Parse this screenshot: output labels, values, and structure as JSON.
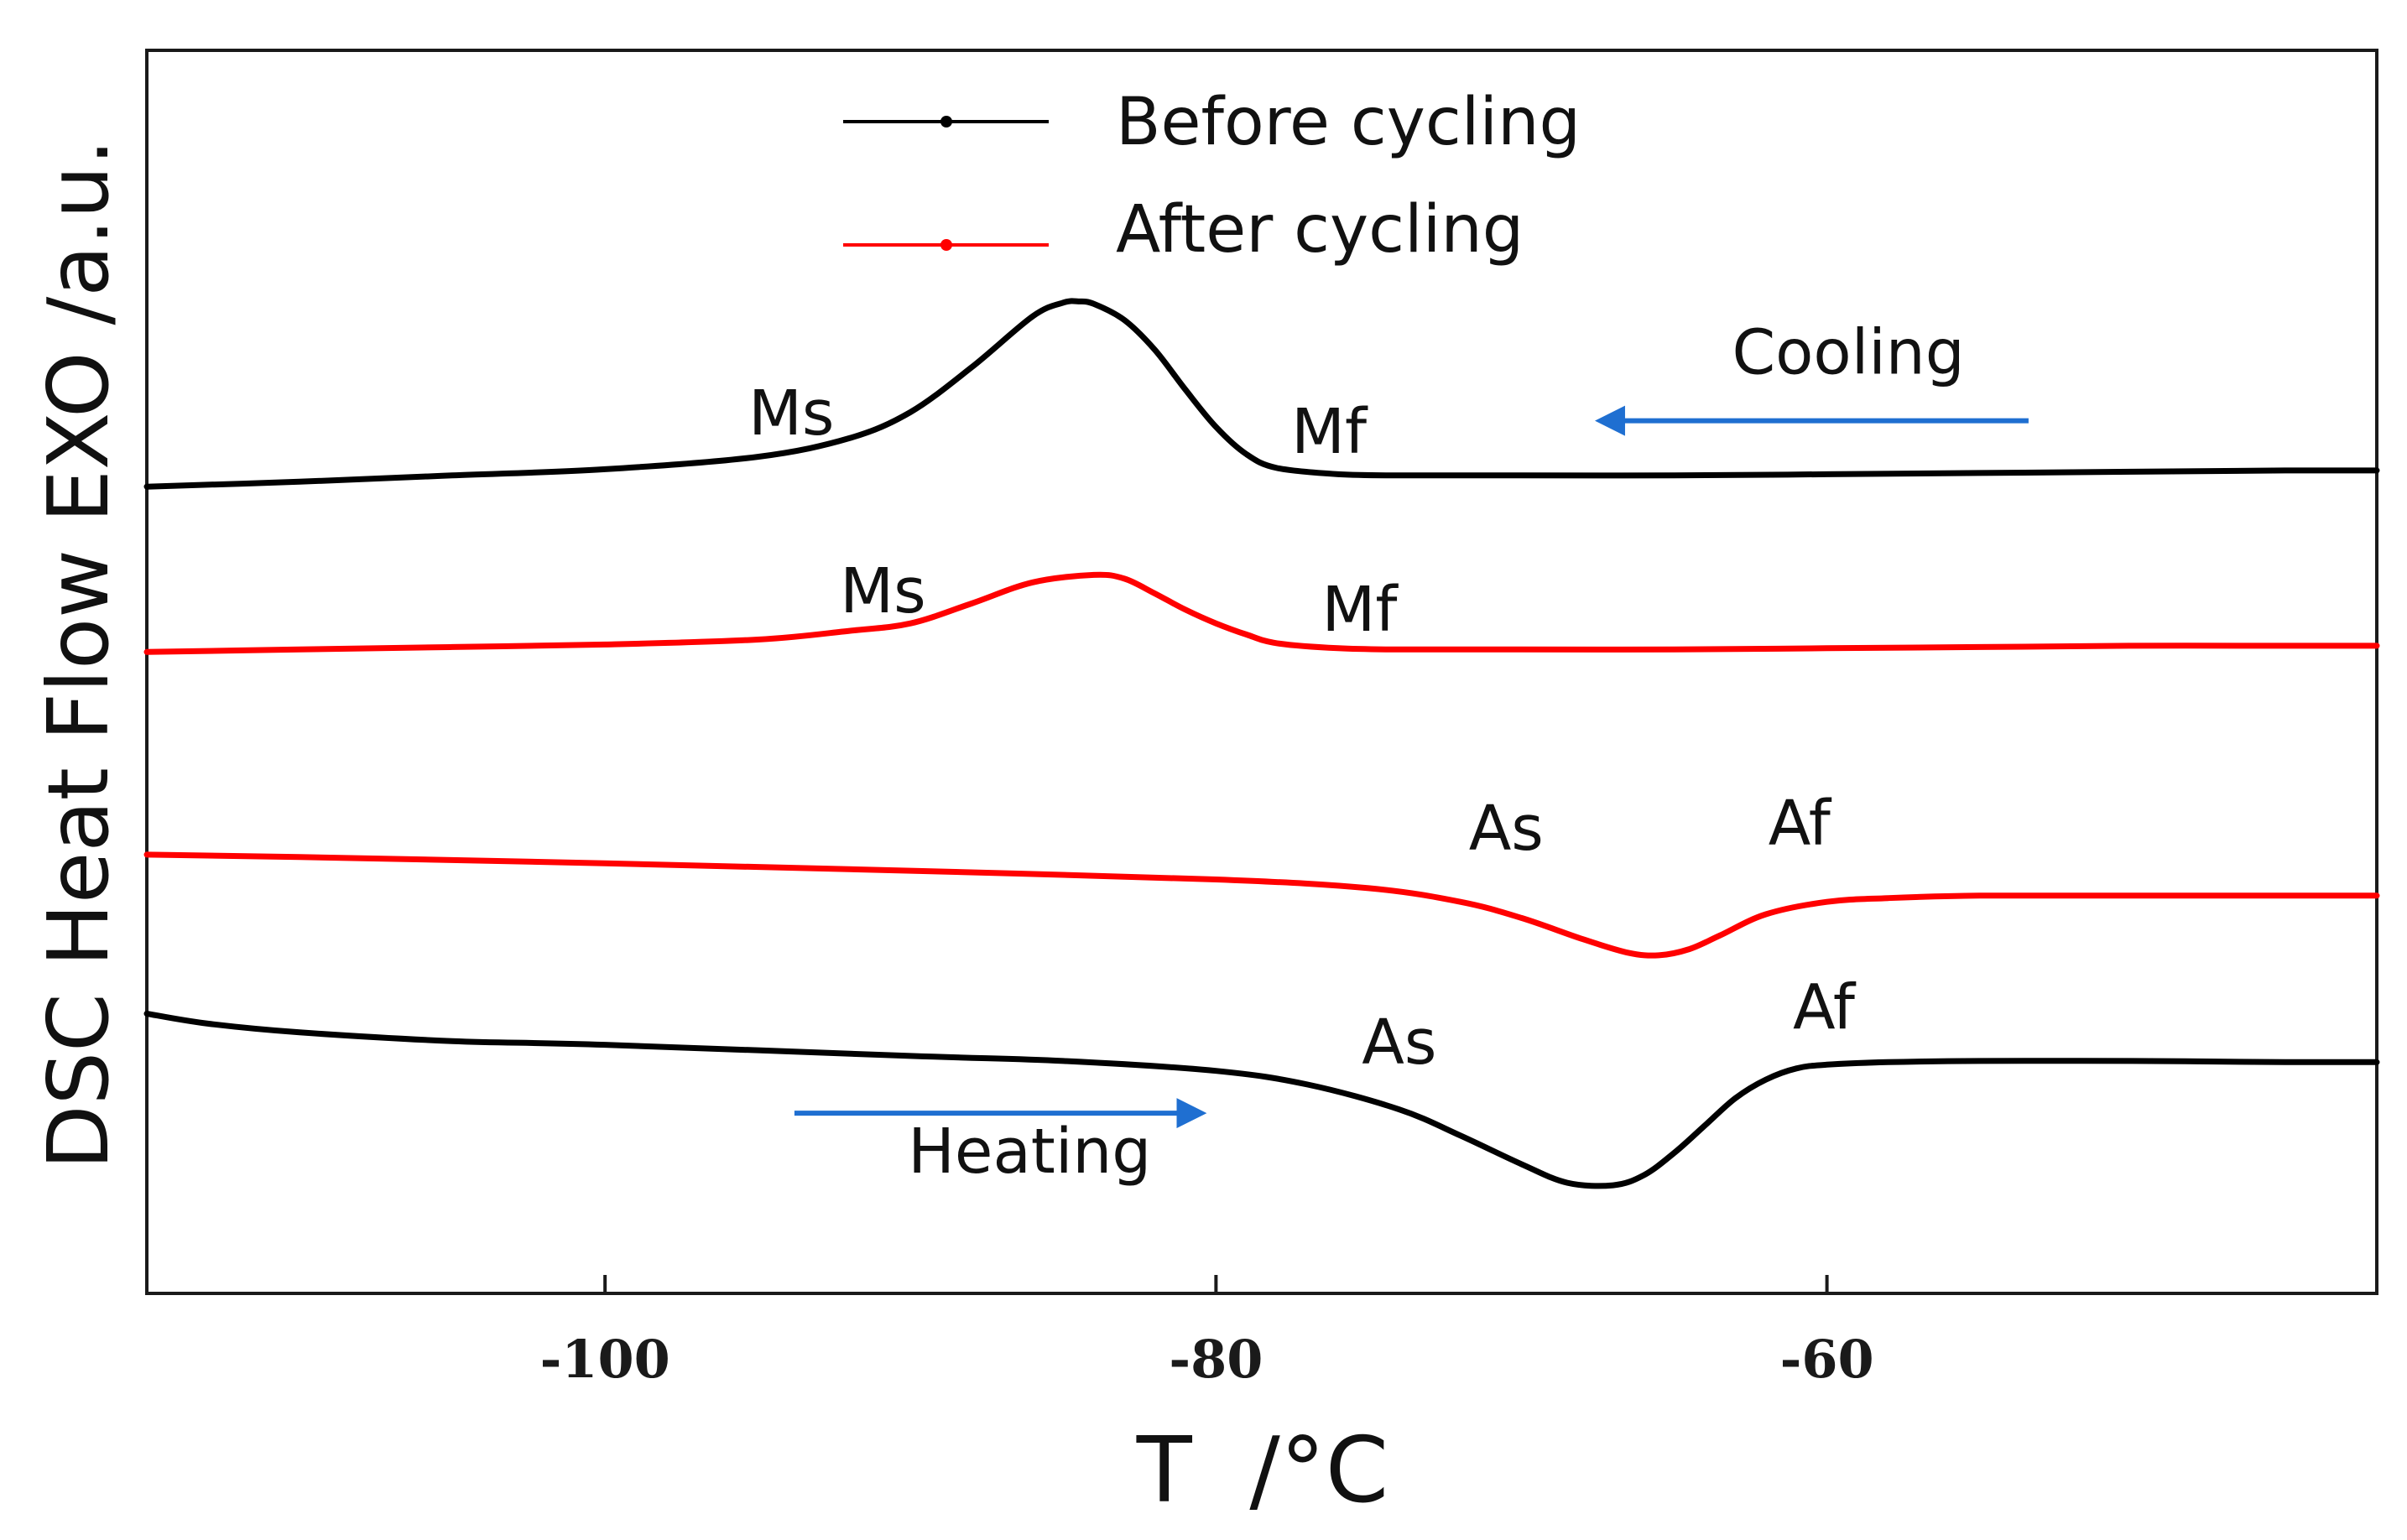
{
  "chart_data": {
    "type": "line",
    "title": "",
    "xlabel": "T  /°C",
    "ylabel": "DSC Heat Flow EXO /a.u.",
    "xlim": [
      -115.0,
      -42.0
    ],
    "ylim": [
      0,
      100
    ],
    "xticks": [
      -100,
      -80,
      -60
    ],
    "xtick_labels": [
      "-100",
      "-80",
      "-60"
    ],
    "grid": false,
    "legend": {
      "placement": "top-center",
      "entries": [
        {
          "name": "Before cycling",
          "color": "#000000"
        },
        {
          "name": "After cycling",
          "color": "#ff0000"
        }
      ]
    },
    "series": [
      {
        "name": "Before cycling - cooling",
        "legend_ref": "Before cycling",
        "color": "#000000",
        "x": [
          -115,
          -110,
          -105,
          -100,
          -95,
          -92,
          -90,
          -88,
          -86,
          -85,
          -84.5,
          -84,
          -83,
          -82,
          -81,
          -80,
          -79,
          -78,
          -76,
          -74,
          -70,
          -65,
          -60,
          -55,
          -50,
          -45,
          -42
        ],
        "y": [
          64.9,
          65.3,
          65.8,
          66.3,
          67.3,
          68.8,
          70.9,
          74.5,
          78.6,
          79.7,
          79.8,
          79.6,
          78.3,
          75.9,
          72.7,
          69.7,
          67.5,
          66.4,
          65.9,
          65.8,
          65.8,
          65.8,
          65.9,
          66.0,
          66.1,
          66.2,
          66.2
        ]
      },
      {
        "name": "After cycling - cooling",
        "legend_ref": "After cycling",
        "color": "#ff0000",
        "x": [
          -115,
          -110,
          -105,
          -100,
          -95,
          -92,
          -90,
          -88,
          -86,
          -84,
          -83,
          -82,
          -81,
          -80,
          -79,
          -78,
          -76,
          -74,
          -70,
          -65,
          -60,
          -55,
          -50,
          -45,
          -42
        ],
        "y": [
          51.6,
          51.8,
          52.0,
          52.2,
          52.6,
          53.3,
          53.9,
          55.5,
          57.2,
          57.8,
          57.5,
          56.3,
          55.0,
          53.9,
          53.0,
          52.3,
          51.9,
          51.8,
          51.8,
          51.8,
          51.9,
          52.0,
          52.1,
          52.1,
          52.1
        ]
      },
      {
        "name": "After cycling - heating",
        "legend_ref": "After cycling",
        "color": "#ff0000",
        "x": [
          -115,
          -110,
          -100,
          -90,
          -80,
          -75,
          -72,
          -70,
          -68,
          -66.5,
          -65.5,
          -64.5,
          -63.5,
          -62,
          -60,
          -58,
          -55,
          -50,
          -45,
          -42
        ],
        "y": [
          35.3,
          35.1,
          34.6,
          34.0,
          33.3,
          32.6,
          31.5,
          30.2,
          28.5,
          27.4,
          27.2,
          27.7,
          28.8,
          30.5,
          31.5,
          31.8,
          32.0,
          32.0,
          32.0,
          32.0
        ]
      },
      {
        "name": "Before cycling - heating",
        "legend_ref": "Before cycling",
        "color": "#000000",
        "x": [
          -115,
          -113,
          -110,
          -105,
          -100,
          -90,
          -85,
          -80,
          -77,
          -74,
          -72,
          -70,
          -68.5,
          -67,
          -66,
          -65,
          -64,
          -63,
          -62,
          -61,
          -60,
          -58,
          -55,
          -50,
          -45,
          -42
        ],
        "y": [
          22.5,
          21.7,
          21.0,
          20.3,
          20.0,
          19.1,
          18.7,
          17.9,
          16.8,
          14.8,
          12.7,
          10.4,
          8.9,
          8.7,
          9.5,
          11.3,
          13.5,
          15.7,
          17.2,
          18.1,
          18.4,
          18.6,
          18.7,
          18.7,
          18.6,
          18.6
        ]
      }
    ],
    "annotations": [
      {
        "text": "Ms",
        "x": -93.9,
        "y": 69.1
      },
      {
        "text": "Mf",
        "x": -76.3,
        "y": 67.6
      },
      {
        "text": "Ms",
        "x": -90.9,
        "y": 54.8
      },
      {
        "text": "Mf",
        "x": -75.3,
        "y": 53.3
      },
      {
        "text": "As",
        "x": -70.5,
        "y": 35.7
      },
      {
        "text": "Af",
        "x": -60.9,
        "y": 36.1
      },
      {
        "text": "As",
        "x": -74.0,
        "y": 18.5
      },
      {
        "text": "Af",
        "x": -60.1,
        "y": 21.3
      },
      {
        "text": "Cooling",
        "x": -59.3,
        "y": 74.0
      },
      {
        "text": "Heating",
        "x": -86.1,
        "y": 9.7
      }
    ],
    "arrows": [
      {
        "name": "cooling-arrow",
        "color": "#1f6fd1",
        "from": [
          -53.4,
          70.2
        ],
        "to": [
          -67.4,
          70.2
        ]
      },
      {
        "name": "heating-arrow",
        "color": "#1f6fd1",
        "from": [
          -93.8,
          14.5
        ],
        "to": [
          -80.5,
          14.5
        ]
      }
    ]
  }
}
